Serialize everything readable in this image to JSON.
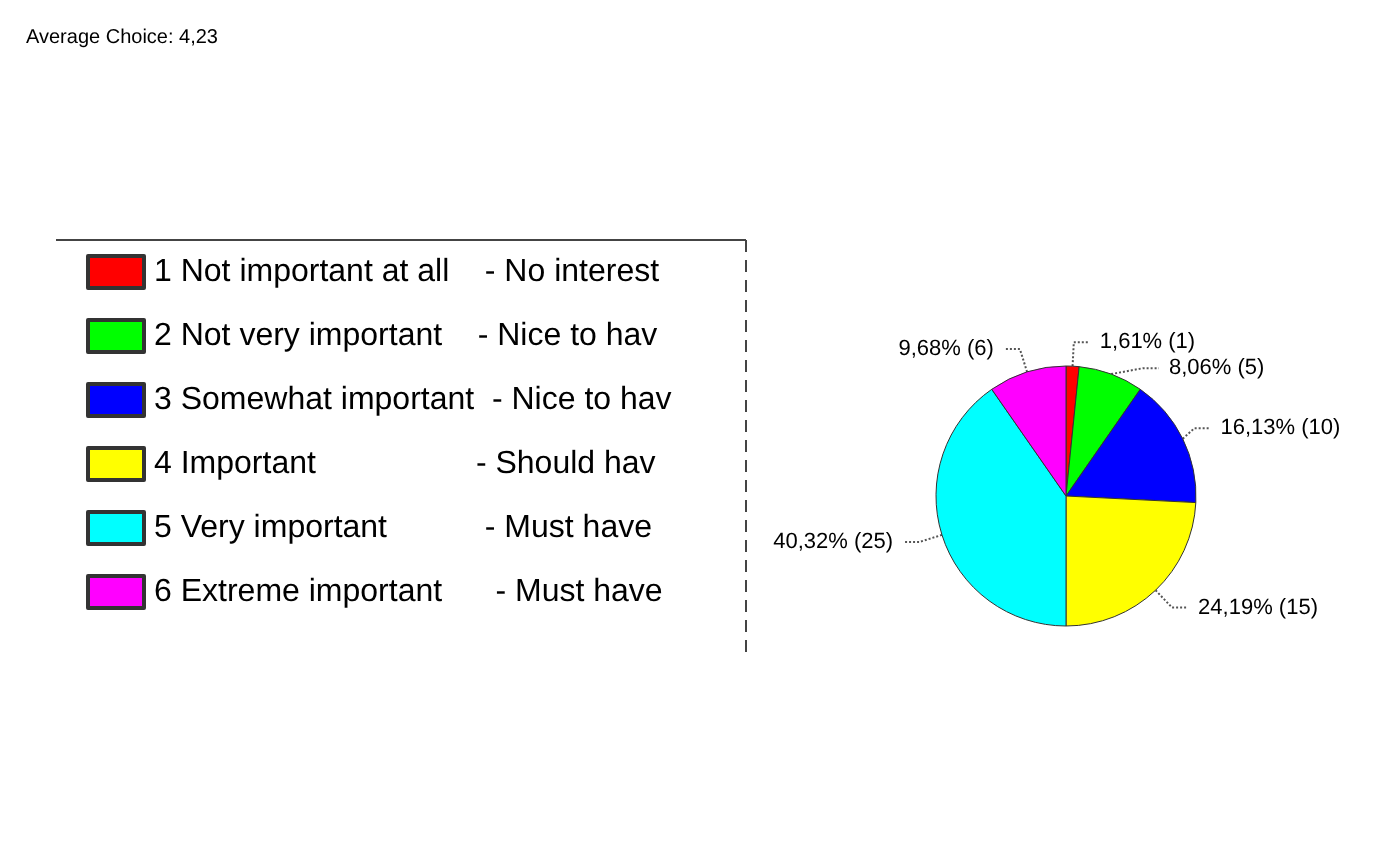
{
  "chart_data": {
    "type": "pie",
    "annotations": [
      "Average Choice: 4,23"
    ],
    "categories": [
      "1 Not important at all    - No interest",
      "2 Not very important    - Nice to hav",
      "3 Somewhat important  - Nice to hav",
      "4 Important                  - Should hav",
      "5 Very important           - Must have",
      "6 Extreme important      - Must have"
    ],
    "values": [
      1,
      5,
      10,
      15,
      25,
      6
    ],
    "value_labels": [
      "1,61% (1)",
      "8,06% (5)",
      "16,13% (10)",
      "24,19% (15)",
      "40,32% (25)",
      "9,68% (6)"
    ],
    "colors": [
      "#ff0000",
      "#00ff00",
      "#0000ff",
      "#ffff00",
      "#00ffff",
      "#ff00ff"
    ],
    "legend": "left"
  }
}
